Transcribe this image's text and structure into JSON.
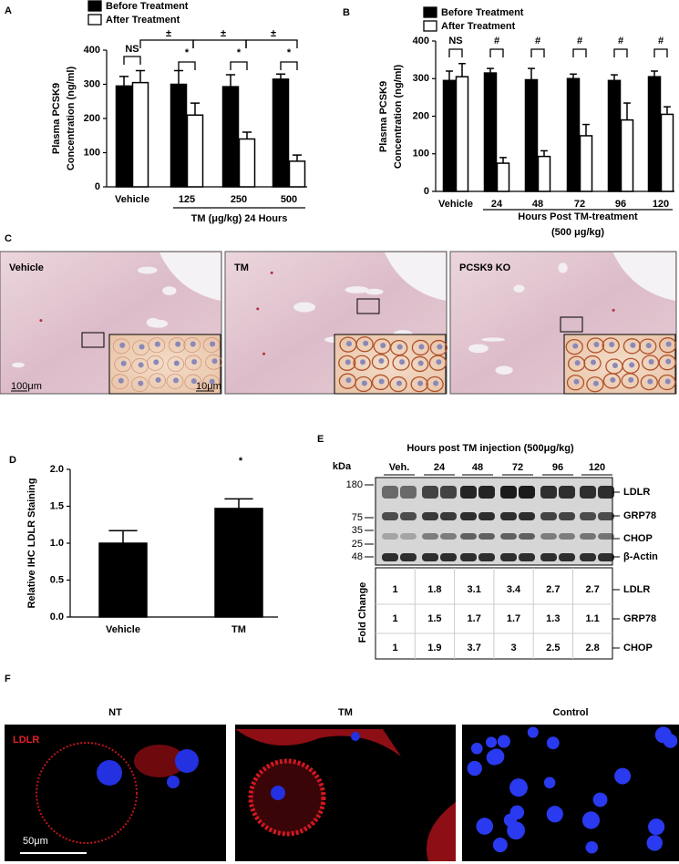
{
  "chart_data": [
    {
      "type": "bar",
      "panel": "A",
      "y_label": [
        "Plasma PCSK9",
        "Concentration (ng/ml)"
      ],
      "x_label": "TM (μg/kg) 24 Hours",
      "categories": [
        "Vehicle",
        "125",
        "250",
        "500"
      ],
      "series": [
        {
          "name": "Before Treatment",
          "color": "#000000",
          "values": [
            295,
            300,
            293,
            315
          ],
          "errors": [
            28,
            40,
            35,
            15
          ]
        },
        {
          "name": "After Treatment",
          "color": "#ffffff",
          "values": [
            305,
            210,
            140,
            75
          ],
          "errors": [
            35,
            35,
            20,
            18
          ]
        }
      ],
      "ylim": [
        0,
        400
      ],
      "yticks": [
        0,
        100,
        200,
        300,
        400
      ],
      "annotations": [
        "NS",
        "*",
        "*",
        "*",
        "±",
        "±",
        "±"
      ]
    },
    {
      "type": "bar",
      "panel": "B",
      "y_label": [
        "Plasma PCSK9",
        "Concentration (ng/ml)"
      ],
      "x_label": [
        "Hours Post TM-treatment",
        "(500 μg/kg)"
      ],
      "categories": [
        "Vehicle",
        "24",
        "48",
        "72",
        "96",
        "120"
      ],
      "series": [
        {
          "name": "Before Treatment",
          "color": "#000000",
          "values": [
            295,
            315,
            297,
            300,
            295,
            305
          ],
          "errors": [
            25,
            12,
            30,
            12,
            15,
            15
          ]
        },
        {
          "name": "After Treatment",
          "color": "#ffffff",
          "values": [
            305,
            75,
            93,
            148,
            190,
            205
          ],
          "errors": [
            35,
            15,
            15,
            30,
            45,
            20
          ]
        }
      ],
      "ylim": [
        0,
        400
      ],
      "yticks": [
        0,
        100,
        200,
        300,
        400
      ],
      "annotations": [
        "NS",
        "#",
        "#",
        "#",
        "#",
        "#"
      ]
    },
    {
      "type": "bar",
      "panel": "D",
      "y_label": "Relative IHC LDLR Staining",
      "categories": [
        "Vehicle",
        "TM"
      ],
      "values": [
        1.0,
        1.47
      ],
      "errors": [
        0.17,
        0.13
      ],
      "color": "#000000",
      "ylim": [
        0,
        2
      ],
      "yticks": [
        {
          "value": 0,
          "label": "0.0"
        },
        {
          "value": 0.5,
          "label": "0.5"
        },
        {
          "value": 1,
          "label": "1.0"
        },
        {
          "value": 1.5,
          "label": "1.5"
        },
        {
          "value": 2,
          "label": "2.0"
        }
      ],
      "annotations": [
        "*"
      ]
    }
  ],
  "histology": {
    "panel": "C",
    "images": [
      "Vehicle",
      "TM",
      "PCSK9 KO"
    ],
    "scale_bars": [
      "100μm",
      "10μm"
    ]
  },
  "western_blot": {
    "panel": "E",
    "title": "Hours post TM injection (500μg/kg)",
    "unit": "kDa",
    "lanes": [
      "Veh.",
      "24",
      "48",
      "72",
      "96",
      "120"
    ],
    "markers": [
      180,
      75,
      35,
      25,
      48
    ],
    "bands": [
      "LDLR",
      "GRP78",
      "CHOP",
      "β-Actin"
    ],
    "table_title": "Fold Change",
    "table_rows": [
      {
        "label": "LDLR",
        "values": [
          1,
          1.8,
          3.1,
          3.4,
          2.7,
          2.7
        ]
      },
      {
        "label": "GRP78",
        "values": [
          1,
          1.5,
          1.7,
          1.7,
          1.3,
          1.1
        ]
      },
      {
        "label": "CHOP",
        "values": [
          1,
          1.9,
          3.7,
          3,
          2.5,
          2.8
        ]
      }
    ]
  },
  "immunofluorescence": {
    "panel": "F",
    "images": [
      "NT",
      "TM",
      "Control"
    ],
    "stain": "LDLR",
    "scale_bar": "50μm"
  }
}
